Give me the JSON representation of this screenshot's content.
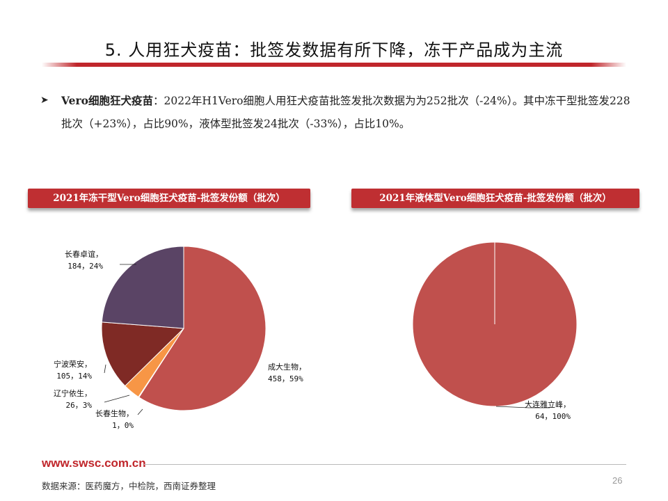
{
  "slide": {
    "title": "5. 人用狂犬疫苗：批签发数据有所下降，冻干产品成为主流",
    "bullet": {
      "lead": "Vero细胞狂犬疫苗",
      "rest": "：2022年H1Vero细胞人用狂犬疫苗批签发批次数据为为252批次（-24%）。其中冻干型批签发228批次（+23%），占比90%，液体型批签发24批次（-33%），占比10%。"
    },
    "footer_url": "www.swsc.com.cn",
    "source": "数据来源：医药魔方，中检院，西南证券整理",
    "page_number": "26"
  },
  "colors": {
    "accent": "#c0262b",
    "slice_red": "#c0504d",
    "slice_purple": "#5a4465",
    "slice_brown": "#7f2a25",
    "slice_orange": "#f79646",
    "slice_gray": "#9a9a9a"
  },
  "chart_data": [
    {
      "type": "pie",
      "title": "2021年冻干型Vero细胞狂犬疫苗-批签发份额（批次）",
      "slices": [
        {
          "name": "成大生物",
          "value": 458,
          "pct": "59%",
          "label": "458，59%",
          "color": "#c0504d"
        },
        {
          "name": "长春生物",
          "value": 1,
          "pct": "0%",
          "label": "1，0%",
          "color": "#9a9a9a"
        },
        {
          "name": "辽宁依生",
          "value": 26,
          "pct": "3%",
          "label": "26，3%",
          "color": "#f79646"
        },
        {
          "name": "宁波荣安",
          "value": 105,
          "pct": "14%",
          "label": "105，14%",
          "color": "#7f2a25"
        },
        {
          "name": "长春卓谊",
          "value": 184,
          "pct": "24%",
          "label": "184，24%",
          "color": "#5a4465"
        }
      ]
    },
    {
      "type": "pie",
      "title": "2021年液体型Vero细胞狂犬疫苗-批签发份额（批次）",
      "slices": [
        {
          "name": "大连雅立峰",
          "value": 64,
          "pct": "100%",
          "label": "64，100%",
          "color": "#c0504d"
        }
      ]
    }
  ]
}
